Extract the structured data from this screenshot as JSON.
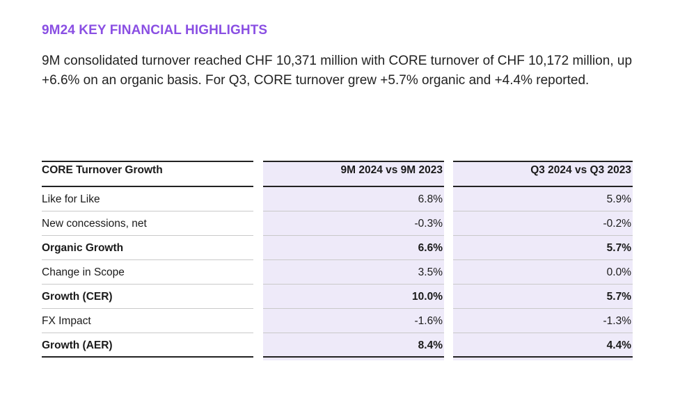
{
  "page": {
    "title": "9M24 KEY FINANCIAL HIGHLIGHTS",
    "intro": "9M consolidated turnover reached CHF 10,371 million with CORE turnover of CHF 10,172 million, up +6.6% on an organic basis. For Q3, CORE turnover grew +5.7% organic and +4.4% reported."
  },
  "table": {
    "headers": {
      "label": "CORE Turnover Growth",
      "col_a": "9M 2024 vs 9M 2023",
      "col_b": "Q3 2024 vs Q3 2023"
    },
    "rows": [
      {
        "label": "Like for Like",
        "col_a": "6.8%",
        "col_b": "5.9%",
        "bold": false
      },
      {
        "label": "New concessions, net",
        "col_a": "-0.3%",
        "col_b": "-0.2%",
        "bold": false
      },
      {
        "label": "Organic Growth",
        "col_a": "6.6%",
        "col_b": "5.7%",
        "bold": true
      },
      {
        "label": "Change in Scope",
        "col_a": "3.5%",
        "col_b": "0.0%",
        "bold": false
      },
      {
        "label": "Growth (CER)",
        "col_a": "10.0%",
        "col_b": "5.7%",
        "bold": true
      },
      {
        "label": "FX Impact",
        "col_a": "-1.6%",
        "col_b": "-1.3%",
        "bold": false
      },
      {
        "label": "Growth (AER)",
        "col_a": "8.4%",
        "col_b": "4.4%",
        "bold": true
      }
    ]
  },
  "colors": {
    "title": "#8a4fe3",
    "column_shade": "#eeeaf9"
  }
}
